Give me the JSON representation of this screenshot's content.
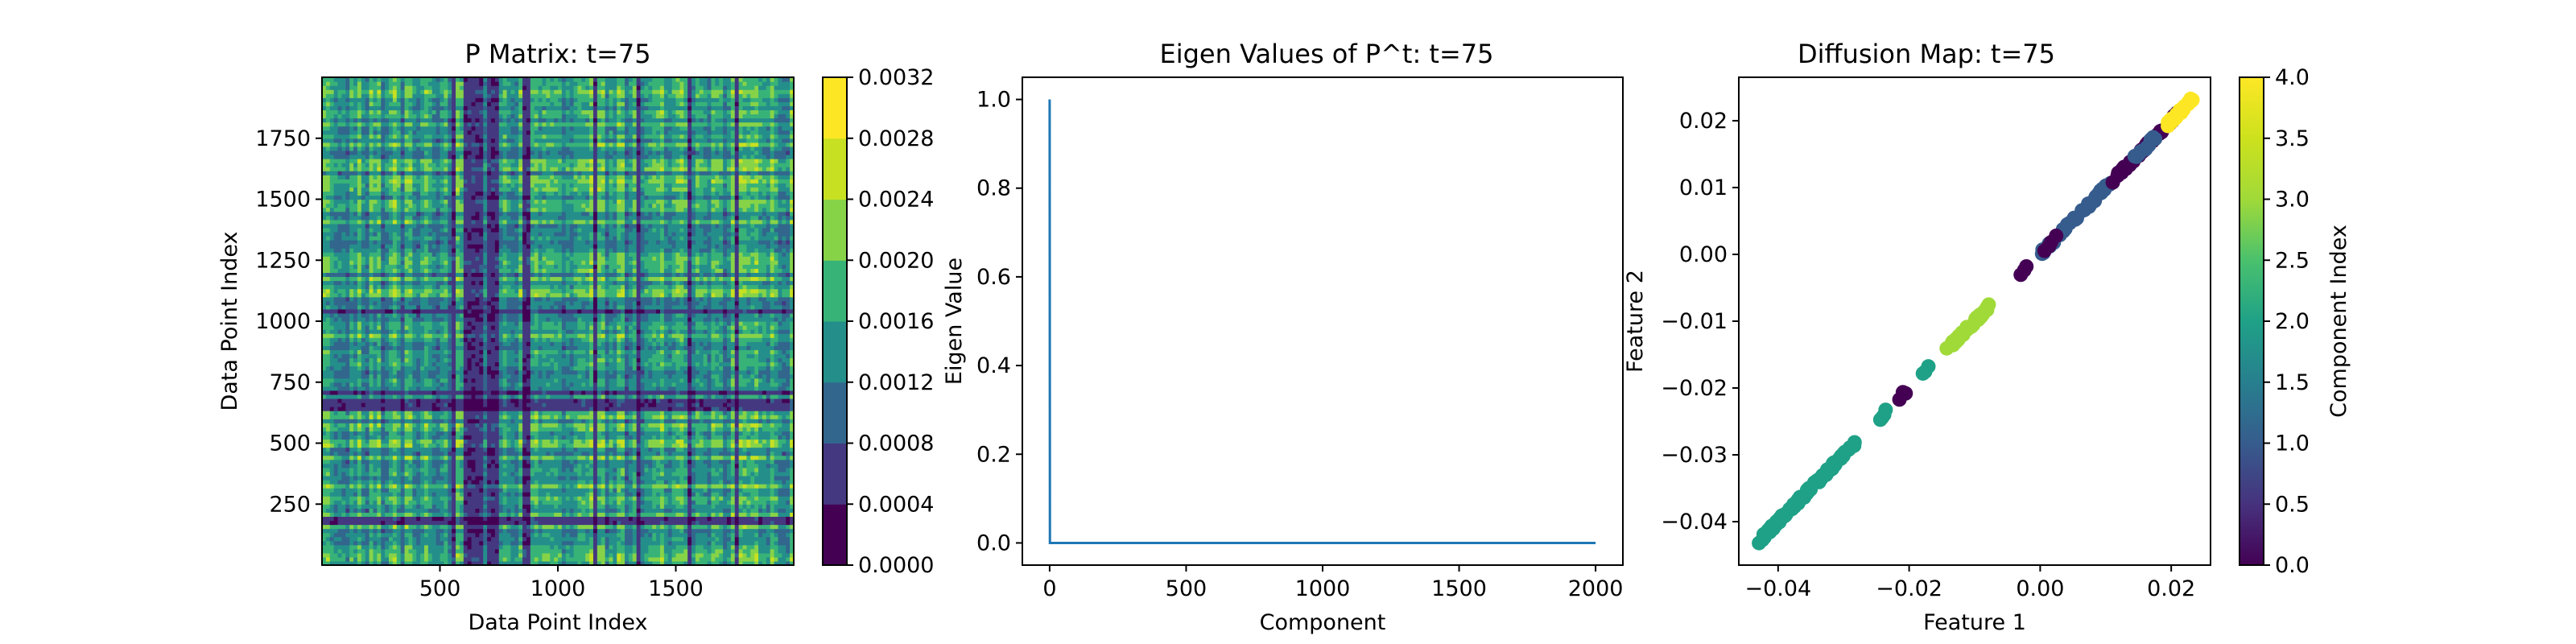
{
  "chart_data": [
    {
      "type": "heatmap",
      "title": "P Matrix: t=75",
      "xlabel": "Data Point Index",
      "ylabel": "Data Point Index",
      "xlim": [
        0,
        2000
      ],
      "ylim": [
        0,
        2000
      ],
      "x_ticks": [
        500,
        1000,
        1500
      ],
      "x_tick_labels": [
        "500",
        "1000",
        "1500"
      ],
      "y_ticks": [
        250,
        500,
        750,
        1000,
        1250,
        1500,
        1750
      ],
      "y_tick_labels": [
        "250",
        "500",
        "750",
        "1000",
        "1250",
        "1500",
        "1750"
      ],
      "colorbar": {
        "colormap": "viridis",
        "range": [
          0.0,
          0.0032
        ],
        "levels": 8,
        "ticks": [
          0.0,
          0.0004,
          0.0008,
          0.0012,
          0.0016,
          0.002,
          0.0024,
          0.0028,
          0.0032
        ],
        "tick_labels": [
          "0.0000",
          "0.0004",
          "0.0008",
          "0.0012",
          "0.0016",
          "0.0020",
          "0.0024",
          "0.0028",
          "0.0032"
        ]
      },
      "cells": {
        "grid_size": 2000,
        "dark_rows": [
          170,
          190,
          640,
          660,
          680,
          700,
          1040
        ],
        "dark_cols": [
          560,
          600,
          620,
          640,
          660,
          680,
          700,
          720,
          740,
          860,
          880,
          1160,
          1340,
          1560,
          1760
        ]
      }
    },
    {
      "type": "line",
      "title": "Eigen Values of P^t: t=75",
      "xlabel": "Component",
      "ylabel": "Eigen Value",
      "xlim": [
        -100,
        2100
      ],
      "ylim": [
        -0.05,
        1.05
      ],
      "x_ticks": [
        0,
        500,
        1000,
        1500,
        2000
      ],
      "x_tick_labels": [
        "0",
        "500",
        "1000",
        "1500",
        "2000"
      ],
      "y_ticks": [
        0.0,
        0.2,
        0.4,
        0.6,
        0.8,
        1.0
      ],
      "y_tick_labels": [
        "0.0",
        "0.2",
        "0.4",
        "0.6",
        "0.8",
        "1.0"
      ],
      "series": [
        {
          "color": "#1f77b4",
          "x": [
            0,
            1,
            2,
            10,
            2000
          ],
          "y": [
            1.0,
            0.0,
            0.0,
            0.0,
            0.0
          ]
        }
      ]
    },
    {
      "type": "scatter",
      "title": "Diffusion Map: t=75",
      "xlabel": "Feature 1",
      "ylabel": "Feature 2",
      "xlim": [
        -0.046,
        0.026
      ],
      "ylim": [
        -0.0465,
        0.0265
      ],
      "x_ticks": [
        -0.04,
        -0.02,
        0.0,
        0.02
      ],
      "x_tick_labels": [
        "−0.04",
        "−0.02",
        "0.00",
        "0.02"
      ],
      "y_ticks": [
        -0.04,
        -0.03,
        -0.02,
        -0.01,
        0.0,
        0.01,
        0.02
      ],
      "y_tick_labels": [
        "−0.04",
        "−0.03",
        "−0.02",
        "−0.01",
        "0.00",
        "0.01",
        "0.02"
      ],
      "colorbar": {
        "label": "Component Index",
        "colormap": "viridis",
        "range": [
          0.0,
          4.0
        ],
        "ticks": [
          0.0,
          0.5,
          1.0,
          1.5,
          2.0,
          2.5,
          3.0,
          3.5,
          4.0
        ],
        "tick_labels": [
          "0.0",
          "0.5",
          "1.0",
          "1.5",
          "2.0",
          "2.5",
          "3.0",
          "3.5",
          "4.0"
        ]
      },
      "clusters": [
        {
          "component": 2,
          "x_range": [
            -0.0435,
            -0.028
          ],
          "count": 110
        },
        {
          "component": 2,
          "x_range": [
            -0.0245,
            -0.0235
          ],
          "count": 4
        },
        {
          "component": 2,
          "x_range": [
            -0.018,
            -0.017
          ],
          "count": 3
        },
        {
          "component": 0,
          "x_range": [
            -0.0215,
            -0.0205
          ],
          "count": 3
        },
        {
          "component": 3,
          "x_range": [
            -0.0145,
            -0.0075
          ],
          "count": 40
        },
        {
          "component": 0,
          "x_range": [
            -0.003,
            -0.002
          ],
          "count": 3
        },
        {
          "component": 1,
          "x_range": [
            -0.0005,
            0.006
          ],
          "count": 25
        },
        {
          "component": 0,
          "x_range": [
            0.0005,
            0.0025
          ],
          "count": 4
        },
        {
          "component": 1,
          "x_range": [
            0.006,
            0.011
          ],
          "count": 20
        },
        {
          "component": 0,
          "x_range": [
            0.011,
            0.0195
          ],
          "count": 45
        },
        {
          "component": 1,
          "x_range": [
            0.014,
            0.018
          ],
          "count": 12
        },
        {
          "component": 0,
          "x_range": [
            0.0195,
            0.0215
          ],
          "count": 12
        },
        {
          "component": 4,
          "x_range": [
            0.019,
            0.0235
          ],
          "count": 45
        }
      ]
    }
  ]
}
